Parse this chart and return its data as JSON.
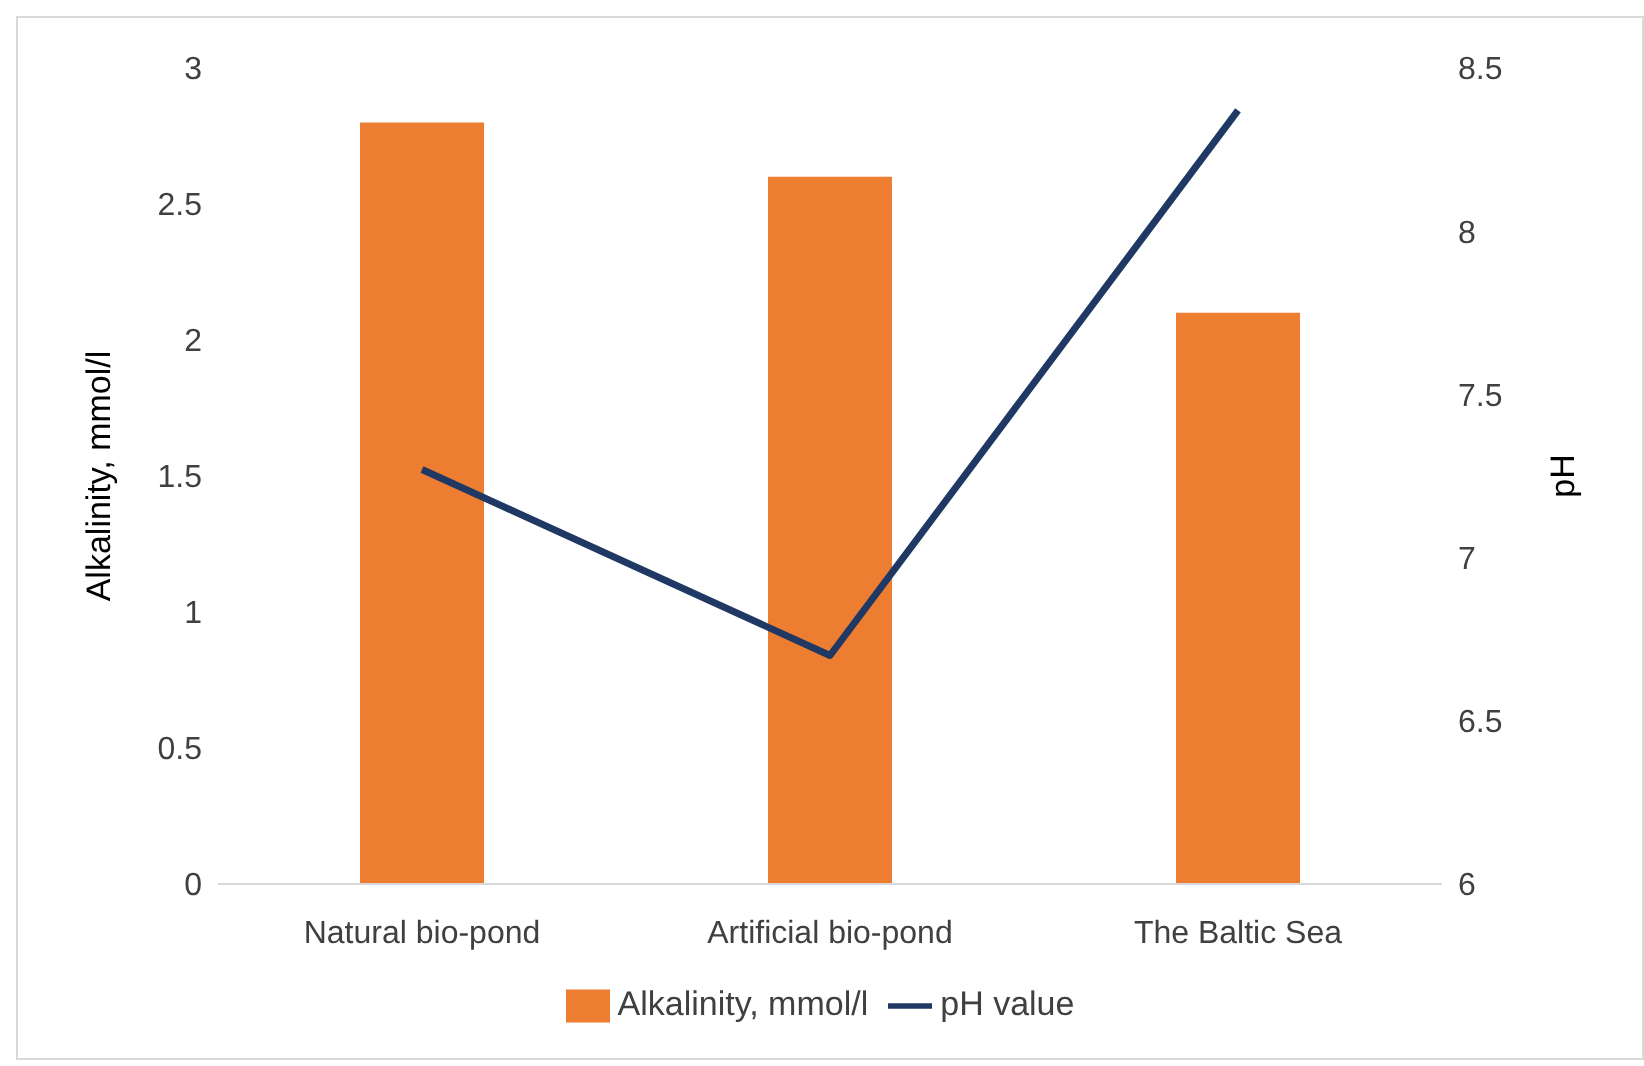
{
  "chart_data": {
    "type": "bar",
    "categories": [
      "Natural bio-pond",
      "Artificial bio-pond",
      "The Baltic Sea"
    ],
    "series": [
      {
        "name": "Alkalinity, mmol/l",
        "color": "#ed7d31",
        "values": [
          2.8,
          2.6,
          2.1
        ]
      },
      {
        "name": "pH value",
        "type": "line",
        "axis": "y2",
        "color": "#1f3864",
        "values": [
          7.27,
          6.7,
          8.37
        ]
      }
    ],
    "ylabel": "Alkalinity, mmol/l",
    "y2label": "pH",
    "ylim": [
      0,
      3
    ],
    "yticks": [
      0,
      0.5,
      1,
      1.5,
      2,
      2.5,
      3
    ],
    "y2lim": [
      6,
      8.5
    ],
    "y2ticks": [
      6,
      6.5,
      7,
      7.5,
      8,
      8.5
    ],
    "legend": "bottom",
    "grid": false,
    "marker": "none"
  }
}
